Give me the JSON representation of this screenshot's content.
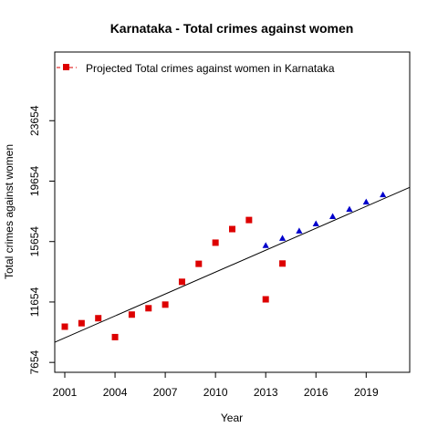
{
  "chart_data": {
    "type": "scatter",
    "title": "Karnataka  -  Total crimes against women",
    "xlabel": "Year",
    "ylabel": "Total crimes against women",
    "xlim": [
      2000.4,
      2021.6
    ],
    "ylim": [
      7000,
      28200
    ],
    "xticks": [
      2001,
      2004,
      2007,
      2010,
      2013,
      2016,
      2019
    ],
    "yticks": [
      7654,
      11654,
      15654,
      19654,
      23654
    ],
    "legend": {
      "position": "top-left",
      "entries": [
        {
          "label": "Projected  Total crimes against women  in  Karnataka",
          "marker": "square",
          "color": "#dd0000"
        }
      ]
    },
    "series": [
      {
        "marker": "square",
        "color": "#dd0000",
        "x": [
          2001,
          2002,
          2003,
          2004,
          2005,
          2006,
          2007,
          2008,
          2009,
          2010,
          2011,
          2012,
          2013,
          2014
        ],
        "y": [
          10020,
          10250,
          10580,
          9330,
          10820,
          11240,
          11480,
          12990,
          14180,
          15580,
          16480,
          17080,
          11830,
          14200
        ]
      },
      {
        "marker": "triangle",
        "color": "#0000cc",
        "x": [
          2013,
          2014,
          2015,
          2016,
          2017,
          2018,
          2019,
          2020
        ],
        "y": [
          15400,
          15880,
          16360,
          16840,
          17320,
          17800,
          18280,
          18760
        ]
      },
      {
        "type": "line",
        "color": "#000000",
        "x": [
          2000.4,
          2021.6
        ],
        "y": [
          8990,
          19240
        ]
      }
    ]
  }
}
